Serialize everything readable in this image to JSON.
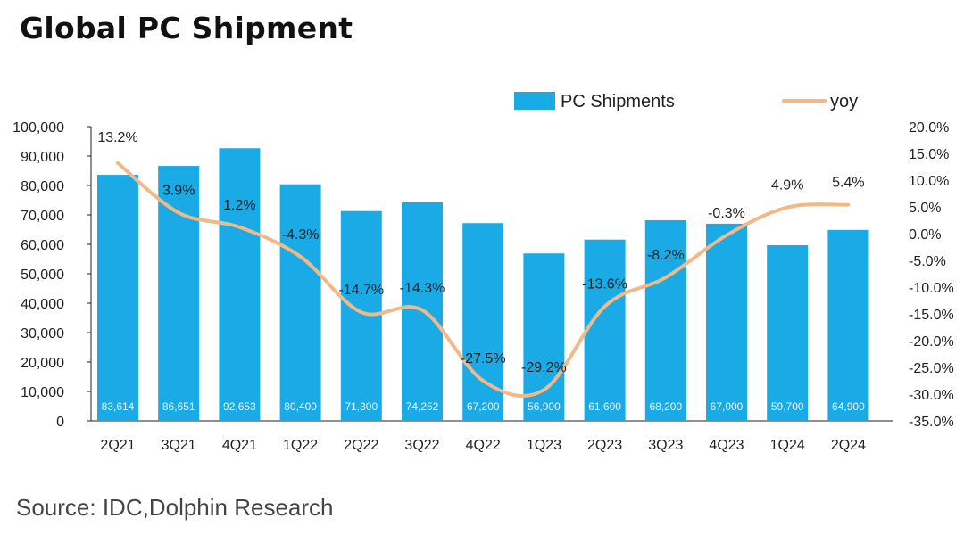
{
  "title": "Global PC Shipment",
  "source": "Source: IDC,Dolphin Research",
  "colors": {
    "bar": "#1aaae6",
    "line": "#f2b887",
    "text": "#222222"
  },
  "chart_data": {
    "type": "bar",
    "title": "Global PC Shipment",
    "categories": [
      "2Q21",
      "3Q21",
      "4Q21",
      "1Q22",
      "2Q22",
      "3Q22",
      "4Q22",
      "1Q23",
      "2Q23",
      "3Q23",
      "4Q23",
      "1Q24",
      "2Q24"
    ],
    "series": [
      {
        "name": "PC Shipments",
        "type": "bar",
        "axis": "left",
        "values": [
          83614,
          86651,
          92653,
          80400,
          71300,
          74252,
          67200,
          56900,
          61600,
          68200,
          67000,
          59700,
          64900
        ],
        "labels": [
          "83,614",
          "86,651",
          "92,653",
          "80,400",
          "71,300",
          "74,252",
          "67,200",
          "56,900",
          "61,600",
          "68,200",
          "67,000",
          "59,700",
          "64,900"
        ]
      },
      {
        "name": "yoy",
        "type": "line",
        "axis": "right",
        "values": [
          13.2,
          3.9,
          1.2,
          -4.3,
          -14.7,
          -14.3,
          -27.5,
          -29.2,
          -13.6,
          -8.2,
          -0.3,
          4.9,
          5.4
        ],
        "labels": [
          "13.2%",
          "3.9%",
          "1.2%",
          "-4.3%",
          "-14.7%",
          "-14.3%",
          "-27.5%",
          "-29.2%",
          "-13.6%",
          "-8.2%",
          "-0.3%",
          "4.9%",
          "5.4%"
        ]
      }
    ],
    "left_axis": {
      "min": 0,
      "max": 100000,
      "ticks": [
        "0",
        "10,000",
        "20,000",
        "30,000",
        "40,000",
        "50,000",
        "60,000",
        "70,000",
        "80,000",
        "90,000",
        "100,000"
      ]
    },
    "right_axis": {
      "min": -35,
      "max": 20,
      "ticks": [
        "-35.0%",
        "-30.0%",
        "-25.0%",
        "-20.0%",
        "-15.0%",
        "-10.0%",
        "-5.0%",
        "0.0%",
        "5.0%",
        "10.0%",
        "15.0%",
        "20.0%"
      ]
    },
    "legend_position": "top-right",
    "grid": false
  }
}
